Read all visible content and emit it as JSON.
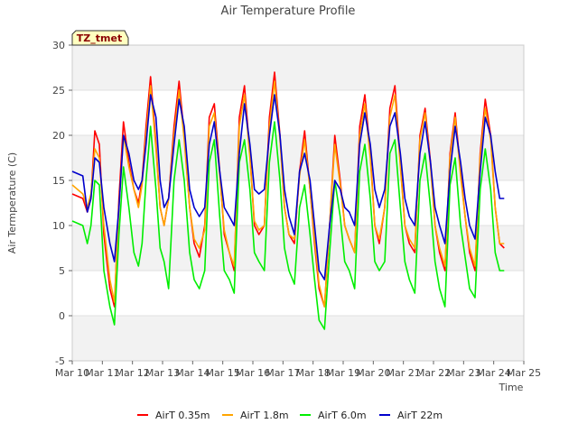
{
  "chart_data": {
    "type": "line",
    "title": "Air Temperature Profile",
    "xlabel": "Time",
    "ylabel": "Air Termperature (C)",
    "tag": "TZ_tmet",
    "xlim": [
      10,
      25
    ],
    "ylim": [
      -5,
      30
    ],
    "x_ticks": [
      {
        "value": 10,
        "label": "Mar 10"
      },
      {
        "value": 11,
        "label": "Mar 11"
      },
      {
        "value": 12,
        "label": "Mar 12"
      },
      {
        "value": 13,
        "label": "Mar 13"
      },
      {
        "value": 14,
        "label": "Mar 14"
      },
      {
        "value": 15,
        "label": "Mar 15"
      },
      {
        "value": 16,
        "label": "Mar 16"
      },
      {
        "value": 17,
        "label": "Mar 17"
      },
      {
        "value": 18,
        "label": "Mar 18"
      },
      {
        "value": 19,
        "label": "Mar 19"
      },
      {
        "value": 20,
        "label": "Mar 20"
      },
      {
        "value": 21,
        "label": "Mar 21"
      },
      {
        "value": 22,
        "label": "Mar 22"
      },
      {
        "value": 23,
        "label": "Mar 23"
      },
      {
        "value": 24,
        "label": "Mar 24"
      },
      {
        "value": 25,
        "label": "Mar 25"
      }
    ],
    "y_ticks": [
      -5,
      0,
      5,
      10,
      15,
      20,
      25,
      30
    ],
    "grid": "horizontal bands",
    "legend_position": "bottom",
    "series": [
      {
        "name": "AirT 0.35m",
        "color": "#ff0000",
        "x": [
          10.0,
          10.35,
          10.5,
          10.62,
          10.75,
          10.9,
          11.05,
          11.25,
          11.4,
          11.55,
          11.7,
          11.88,
          12.05,
          12.2,
          12.32,
          12.45,
          12.6,
          12.78,
          12.92,
          13.05,
          13.2,
          13.38,
          13.55,
          13.72,
          13.9,
          14.05,
          14.22,
          14.4,
          14.55,
          14.72,
          14.9,
          15.05,
          15.22,
          15.38,
          15.55,
          15.72,
          15.9,
          16.05,
          16.2,
          16.38,
          16.55,
          16.72,
          16.9,
          17.05,
          17.2,
          17.38,
          17.55,
          17.72,
          17.9,
          18.05,
          18.2,
          18.38,
          18.55,
          18.72,
          18.9,
          19.05,
          19.2,
          19.38,
          19.55,
          19.72,
          19.9,
          20.05,
          20.2,
          20.38,
          20.55,
          20.72,
          20.9,
          21.05,
          21.2,
          21.38,
          21.55,
          21.72,
          21.9,
          22.05,
          22.2,
          22.38,
          22.55,
          22.72,
          22.9,
          23.05,
          23.2,
          23.38,
          23.55,
          23.72,
          23.9,
          24.05,
          24.2,
          24.35
        ],
        "values": [
          13.5,
          13.0,
          11.5,
          13.0,
          20.5,
          19.0,
          9.0,
          3.0,
          1.0,
          13.0,
          21.5,
          17.0,
          14.0,
          12.5,
          15.0,
          21.0,
          26.5,
          19.0,
          12.0,
          10.0,
          13.0,
          21.0,
          26.0,
          20.0,
          12.0,
          8.0,
          6.5,
          10.0,
          22.0,
          23.5,
          16.0,
          9.0,
          7.0,
          5.0,
          22.0,
          25.5,
          18.0,
          10.0,
          9.0,
          10.0,
          22.0,
          27.0,
          20.0,
          12.0,
          9.0,
          8.0,
          16.0,
          20.5,
          14.0,
          8.0,
          3.0,
          1.0,
          10.0,
          20.0,
          15.0,
          10.0,
          8.5,
          7.0,
          21.0,
          24.5,
          18.0,
          10.0,
          8.0,
          12.0,
          23.0,
          25.5,
          17.0,
          10.0,
          8.0,
          7.0,
          20.0,
          23.0,
          17.0,
          10.0,
          7.0,
          5.0,
          18.0,
          22.5,
          16.0,
          11.0,
          7.0,
          5.0,
          18.0,
          24.0,
          20.0,
          12.0,
          8.0,
          7.5
        ]
      },
      {
        "name": "AirT 1.8m",
        "color": "#ffa500",
        "x": [
          10.0,
          10.35,
          10.5,
          10.62,
          10.75,
          10.9,
          11.05,
          11.25,
          11.4,
          11.55,
          11.7,
          11.88,
          12.05,
          12.2,
          12.32,
          12.45,
          12.6,
          12.78,
          12.92,
          13.05,
          13.2,
          13.38,
          13.55,
          13.72,
          13.9,
          14.05,
          14.22,
          14.4,
          14.55,
          14.72,
          14.9,
          15.05,
          15.22,
          15.38,
          15.55,
          15.72,
          15.9,
          16.05,
          16.2,
          16.38,
          16.55,
          16.72,
          16.9,
          17.05,
          17.2,
          17.38,
          17.55,
          17.72,
          17.9,
          18.05,
          18.2,
          18.38,
          18.55,
          18.72,
          18.9,
          19.05,
          19.2,
          19.38,
          19.55,
          19.72,
          19.9,
          20.05,
          20.2,
          20.38,
          20.55,
          20.72,
          20.9,
          21.05,
          21.2,
          21.38,
          21.55,
          21.72,
          21.9,
          22.05,
          22.2,
          22.38,
          22.55,
          22.72,
          22.9,
          23.05,
          23.2,
          23.38,
          23.55,
          23.72,
          23.9,
          24.05,
          24.2,
          24.35
        ],
        "values": [
          14.5,
          13.5,
          12.0,
          13.5,
          18.5,
          17.5,
          10.0,
          4.0,
          1.5,
          12.0,
          20.0,
          16.5,
          14.0,
          12.0,
          14.5,
          20.0,
          25.5,
          18.5,
          12.0,
          10.0,
          13.0,
          20.0,
          25.0,
          19.5,
          12.0,
          8.5,
          7.5,
          9.5,
          21.0,
          22.5,
          15.5,
          9.5,
          7.0,
          5.5,
          21.0,
          24.5,
          17.5,
          10.5,
          9.5,
          10.0,
          21.0,
          26.0,
          19.5,
          12.0,
          9.0,
          8.5,
          15.5,
          19.5,
          14.0,
          8.5,
          3.5,
          1.0,
          10.0,
          19.0,
          14.5,
          10.0,
          8.5,
          7.0,
          20.0,
          23.5,
          17.5,
          10.0,
          8.5,
          12.0,
          22.0,
          24.5,
          16.5,
          10.0,
          8.5,
          7.5,
          19.5,
          22.5,
          16.5,
          10.0,
          7.5,
          5.5,
          17.5,
          22.0,
          15.5,
          11.0,
          7.5,
          5.5,
          17.5,
          23.0,
          19.5,
          12.0,
          8.0,
          8.0
        ]
      },
      {
        "name": "AirT 6.0m",
        "color": "#00ee00",
        "x": [
          10.0,
          10.35,
          10.5,
          10.62,
          10.75,
          10.9,
          11.05,
          11.25,
          11.4,
          11.55,
          11.7,
          11.88,
          12.05,
          12.2,
          12.32,
          12.45,
          12.6,
          12.78,
          12.92,
          13.05,
          13.2,
          13.38,
          13.55,
          13.72,
          13.9,
          14.05,
          14.22,
          14.4,
          14.55,
          14.72,
          14.9,
          15.05,
          15.22,
          15.38,
          15.55,
          15.72,
          15.9,
          16.05,
          16.2,
          16.38,
          16.55,
          16.72,
          16.9,
          17.05,
          17.2,
          17.38,
          17.55,
          17.72,
          17.9,
          18.05,
          18.2,
          18.38,
          18.55,
          18.72,
          18.9,
          19.05,
          19.2,
          19.38,
          19.55,
          19.72,
          19.9,
          20.05,
          20.2,
          20.38,
          20.55,
          20.72,
          20.9,
          21.05,
          21.2,
          21.38,
          21.55,
          21.72,
          21.9,
          22.05,
          22.2,
          22.38,
          22.55,
          22.72,
          22.9,
          23.05,
          23.2,
          23.38,
          23.55,
          23.72,
          23.9,
          24.05,
          24.2,
          24.35
        ],
        "values": [
          10.5,
          10.0,
          8.0,
          10.0,
          15.0,
          14.5,
          5.0,
          1.0,
          -1.0,
          9.0,
          16.5,
          12.0,
          7.0,
          5.5,
          8.0,
          15.0,
          21.0,
          14.0,
          7.5,
          6.0,
          3.0,
          15.0,
          19.5,
          15.0,
          7.0,
          4.0,
          3.0,
          5.0,
          17.0,
          19.5,
          11.0,
          5.0,
          4.0,
          2.5,
          17.0,
          19.5,
          14.0,
          7.0,
          6.0,
          5.0,
          17.0,
          21.5,
          15.0,
          7.5,
          5.0,
          3.5,
          12.0,
          14.5,
          9.0,
          4.0,
          -0.5,
          -1.5,
          7.0,
          15.0,
          11.0,
          6.0,
          5.0,
          3.0,
          16.0,
          19.0,
          13.0,
          6.0,
          5.0,
          6.0,
          18.0,
          19.5,
          12.0,
          6.0,
          4.0,
          2.5,
          15.0,
          18.0,
          12.0,
          6.0,
          3.0,
          1.0,
          14.5,
          17.5,
          10.0,
          6.5,
          3.0,
          2.0,
          14.0,
          18.5,
          14.0,
          7.0,
          5.0,
          5.0
        ]
      },
      {
        "name": "AirT 22m",
        "color": "#0000cc",
        "x": [
          10.0,
          10.35,
          10.5,
          10.62,
          10.75,
          10.9,
          11.05,
          11.25,
          11.4,
          11.55,
          11.7,
          11.88,
          12.05,
          12.2,
          12.32,
          12.45,
          12.6,
          12.78,
          12.92,
          13.05,
          13.2,
          13.38,
          13.55,
          13.72,
          13.9,
          14.05,
          14.22,
          14.4,
          14.55,
          14.72,
          14.9,
          15.05,
          15.22,
          15.38,
          15.55,
          15.72,
          15.9,
          16.05,
          16.2,
          16.38,
          16.55,
          16.72,
          16.9,
          17.05,
          17.2,
          17.38,
          17.55,
          17.72,
          17.9,
          18.05,
          18.2,
          18.38,
          18.55,
          18.72,
          18.9,
          19.05,
          19.2,
          19.38,
          19.55,
          19.72,
          19.9,
          20.05,
          20.2,
          20.38,
          20.55,
          20.72,
          20.9,
          21.05,
          21.2,
          21.38,
          21.55,
          21.72,
          21.9,
          22.05,
          22.2,
          22.38,
          22.55,
          22.72,
          22.9,
          23.05,
          23.2,
          23.38,
          23.55,
          23.72,
          23.9,
          24.05,
          24.2,
          24.35
        ],
        "values": [
          16.0,
          15.5,
          11.5,
          13.0,
          17.5,
          17.0,
          12.0,
          8.0,
          6.0,
          12.0,
          20.0,
          18.0,
          15.0,
          14.0,
          15.0,
          19.0,
          24.5,
          22.0,
          15.0,
          12.0,
          13.0,
          19.0,
          24.0,
          21.0,
          14.0,
          12.0,
          11.0,
          12.0,
          19.0,
          21.5,
          16.0,
          12.0,
          11.0,
          10.0,
          18.0,
          23.5,
          19.0,
          14.0,
          13.5,
          14.0,
          20.0,
          24.5,
          20.0,
          14.0,
          11.0,
          9.0,
          16.0,
          18.0,
          15.0,
          10.0,
          5.0,
          4.0,
          10.0,
          15.0,
          14.0,
          12.0,
          11.5,
          10.0,
          19.0,
          22.5,
          19.0,
          14.0,
          12.0,
          14.0,
          21.0,
          22.5,
          18.0,
          13.0,
          11.0,
          10.0,
          18.0,
          21.5,
          17.0,
          12.0,
          10.0,
          8.0,
          16.0,
          21.0,
          17.0,
          13.0,
          10.0,
          8.5,
          16.0,
          22.0,
          20.0,
          16.0,
          13.0,
          13.0
        ]
      }
    ]
  }
}
